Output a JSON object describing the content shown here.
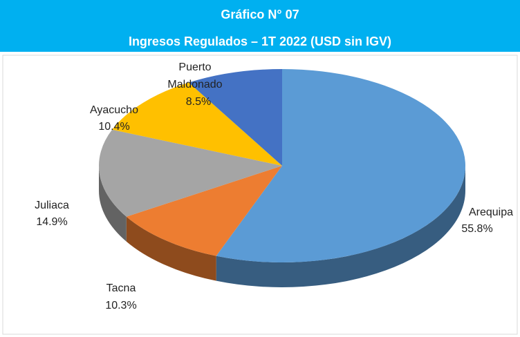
{
  "chart_data": {
    "type": "pie3d",
    "title": "Gráfico N° 07",
    "subtitle": "Ingresos Regulados  – 1T 2022 (USD sin IGV)",
    "categories": [
      "Arequipa",
      "Tacna",
      "Juliaca",
      "Ayacucho",
      "Puerto Maldonado"
    ],
    "values": [
      55.8,
      10.3,
      14.9,
      10.4,
      8.5
    ],
    "value_labels": [
      "55.8%",
      "10.3%",
      "14.9%",
      "10.4%",
      "8.5%"
    ],
    "colors": [
      "#5b9bd5",
      "#ed7d31",
      "#a5a5a5",
      "#ffc000",
      "#4472c4"
    ]
  }
}
